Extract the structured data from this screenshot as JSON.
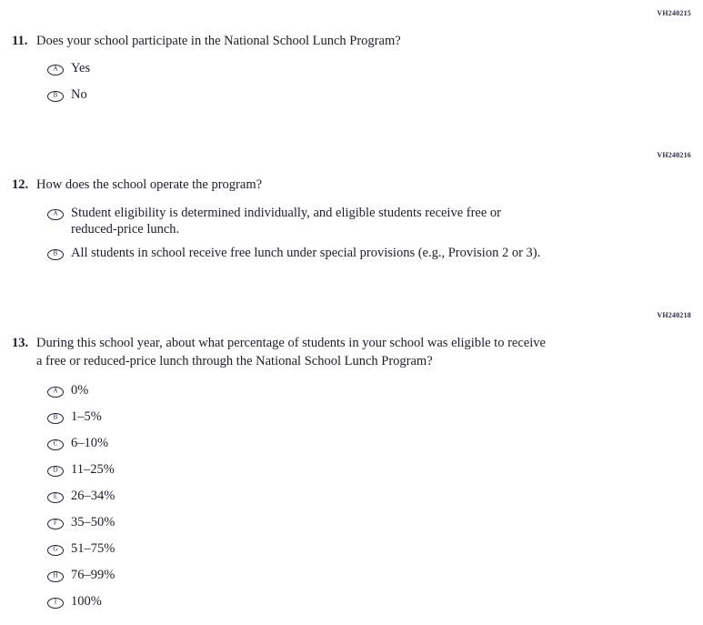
{
  "page": {
    "background": "#ffffff",
    "text_color": "#1c1c2c",
    "code_color": "#2a2a4e"
  },
  "questions": [
    {
      "code": "VH240215",
      "number": "11.",
      "text": "Does your school participate in the National School Lunch Program?",
      "options": [
        {
          "letter": "A",
          "label": "Yes"
        },
        {
          "letter": "B",
          "label": "No"
        }
      ]
    },
    {
      "code": "VH240216",
      "number": "12.",
      "text": "How does the school operate the program?",
      "options": [
        {
          "letter": "A",
          "label": "Student eligibility is determined individually, and eligible students receive free or\nreduced-price lunch."
        },
        {
          "letter": "B",
          "label": "All students in school receive free lunch under special provisions (e.g., Provision 2 or 3)."
        }
      ]
    },
    {
      "code": "VH240218",
      "number": "13.",
      "text": "During this school year, about what percentage of students in your school was eligible to receive\na free or reduced-price lunch through the National School Lunch Program?",
      "options": [
        {
          "letter": "A",
          "label": "0%"
        },
        {
          "letter": "B",
          "label": "1–5%"
        },
        {
          "letter": "C",
          "label": "6–10%"
        },
        {
          "letter": "D",
          "label": "11–25%"
        },
        {
          "letter": "E",
          "label": "26–34%"
        },
        {
          "letter": "F",
          "label": "35–50%"
        },
        {
          "letter": "G",
          "label": "51–75%"
        },
        {
          "letter": "H",
          "label": "76–99%"
        },
        {
          "letter": "I",
          "label": "100%"
        }
      ]
    }
  ]
}
